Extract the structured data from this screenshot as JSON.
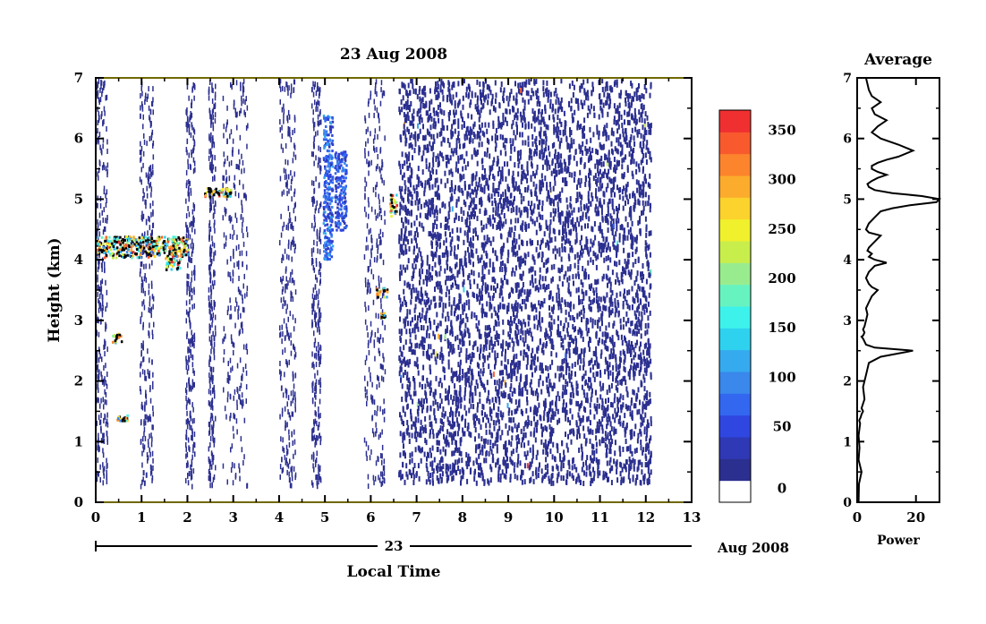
{
  "chart_data": [
    {
      "type": "heatmap",
      "title": "23 Aug 2008",
      "xlabel": "Local Time",
      "ylabel": "Height (km)",
      "xlim": [
        0,
        13
      ],
      "ylim": [
        0,
        7
      ],
      "xticks": [
        "0",
        "1",
        "2",
        "3",
        "4",
        "5",
        "6",
        "7",
        "8",
        "9",
        "10",
        "11",
        "12",
        "13"
      ],
      "yticks": [
        "0",
        "1",
        "2",
        "3",
        "4",
        "5",
        "6",
        "7"
      ],
      "date_axis": {
        "day_label": "23",
        "month_label": "Aug 2008"
      },
      "data_extent_hours": [
        0,
        12.1
      ],
      "dense_noise_start_hours": 6.6,
      "colorbar": {
        "min": 0,
        "max": 375,
        "ticks": [
          "0",
          "50",
          "100",
          "150",
          "200",
          "250",
          "300",
          "350"
        ],
        "colors": [
          "#ffffff",
          "#2b2f8f",
          "#2f38b5",
          "#2f46e0",
          "#3367f0",
          "#3a88ec",
          "#35aaee",
          "#2ed2ee",
          "#3cf2ea",
          "#67f3c0",
          "#99ec8e",
          "#c8ee4c",
          "#f0f02c",
          "#fcd22c",
          "#fcac2c",
          "#fc842c",
          "#f85a2e",
          "#f03030"
        ]
      },
      "layers": [
        {
          "time": [
            0.0,
            2.0
          ],
          "height": [
            4.05,
            4.4
          ],
          "power": 330
        },
        {
          "time": [
            1.5,
            1.85
          ],
          "height": [
            3.85,
            4.05
          ],
          "power": 350
        },
        {
          "time": [
            2.35,
            2.95
          ],
          "height": [
            5.05,
            5.2
          ],
          "power": 340
        },
        {
          "time": [
            0.35,
            0.55
          ],
          "height": [
            2.65,
            2.8
          ],
          "power": 300
        },
        {
          "time": [
            0.45,
            0.7
          ],
          "height": [
            1.35,
            1.45
          ],
          "power": 320
        },
        {
          "time": [
            6.1,
            6.35
          ],
          "height": [
            3.4,
            3.55
          ],
          "power": 330
        },
        {
          "time": [
            6.2,
            6.3
          ],
          "height": [
            3.05,
            3.15
          ],
          "power": 300
        },
        {
          "time": [
            6.4,
            6.55
          ],
          "height": [
            4.7,
            5.1
          ],
          "power": 340
        },
        {
          "time": [
            4.95,
            5.15
          ],
          "height": [
            4.0,
            6.4
          ],
          "power": 110
        },
        {
          "time": [
            5.2,
            5.45
          ],
          "height": [
            4.5,
            5.8
          ],
          "power": 90
        }
      ]
    },
    {
      "type": "line",
      "title": "Average",
      "xlabel": "Power",
      "ylabel": "",
      "xlim": [
        0,
        28
      ],
      "ylim": [
        0,
        7
      ],
      "xticks": [
        "0",
        "20"
      ],
      "yticks": [
        "0",
        "1",
        "2",
        "3",
        "4",
        "5",
        "6",
        "7"
      ],
      "x": [
        0.5,
        0.6,
        1.5,
        0.5,
        0.8,
        0.5,
        1.0,
        0.7,
        1.2,
        1.5,
        2.0,
        1.5,
        2.5,
        2.0,
        3.0,
        4.0,
        8.0,
        19.0,
        6.0,
        3.0,
        2.0,
        1.5,
        2.0,
        2.5,
        2.0,
        2.5,
        3.0,
        3.5,
        3.0,
        4.0,
        5.0,
        7.0,
        5.0,
        4.0,
        3.0,
        4.0,
        6.0,
        10.0,
        6.0,
        4.0,
        5.0,
        3.5,
        4.0,
        5.0,
        6.0,
        8.0,
        4.0,
        3.0,
        4.0,
        6.0,
        8.0,
        12.0,
        18.0,
        27.0,
        28.0,
        22.0,
        12.0,
        6.0,
        4.0,
        3.5,
        5.0,
        7.0,
        10.0,
        7.0,
        5.0,
        5.0,
        7.0,
        10.0,
        14.0,
        19.0,
        14.0,
        8.0,
        5.0,
        7.0,
        10.0,
        6.0,
        5.0,
        8.0,
        5.0,
        4.0,
        3.5,
        3.0,
        2.5,
        2.0,
        2.0,
        1.5,
        1.5,
        1.5,
        1.0,
        1.0,
        1.0,
        0.8,
        0.8
      ],
      "y": [
        0.0,
        0.3,
        0.5,
        0.7,
        0.9,
        1.1,
        1.3,
        1.35,
        1.4,
        1.45,
        1.5,
        1.55,
        1.7,
        1.9,
        2.1,
        2.3,
        2.4,
        2.5,
        2.55,
        2.6,
        2.7,
        2.73,
        2.75,
        2.8,
        2.85,
        2.9,
        3.0,
        3.1,
        3.2,
        3.3,
        3.4,
        3.5,
        3.55,
        3.6,
        3.7,
        3.8,
        3.9,
        3.95,
        4.0,
        4.05,
        4.1,
        4.15,
        4.2,
        4.25,
        4.3,
        4.4,
        4.45,
        4.5,
        4.6,
        4.7,
        4.8,
        4.85,
        4.9,
        4.95,
        5.0,
        5.05,
        5.1,
        5.15,
        5.2,
        5.25,
        5.3,
        5.35,
        5.4,
        5.45,
        5.5,
        5.55,
        5.6,
        5.65,
        5.7,
        5.8,
        5.9,
        6.0,
        6.1,
        6.2,
        6.3,
        6.4,
        6.5,
        6.6,
        6.7,
        6.8,
        6.9,
        7.0,
        7.0,
        7.0,
        7.0,
        7.0,
        7.0,
        7.0,
        7.0,
        7.0,
        7.0,
        7.0,
        7.0
      ]
    }
  ]
}
